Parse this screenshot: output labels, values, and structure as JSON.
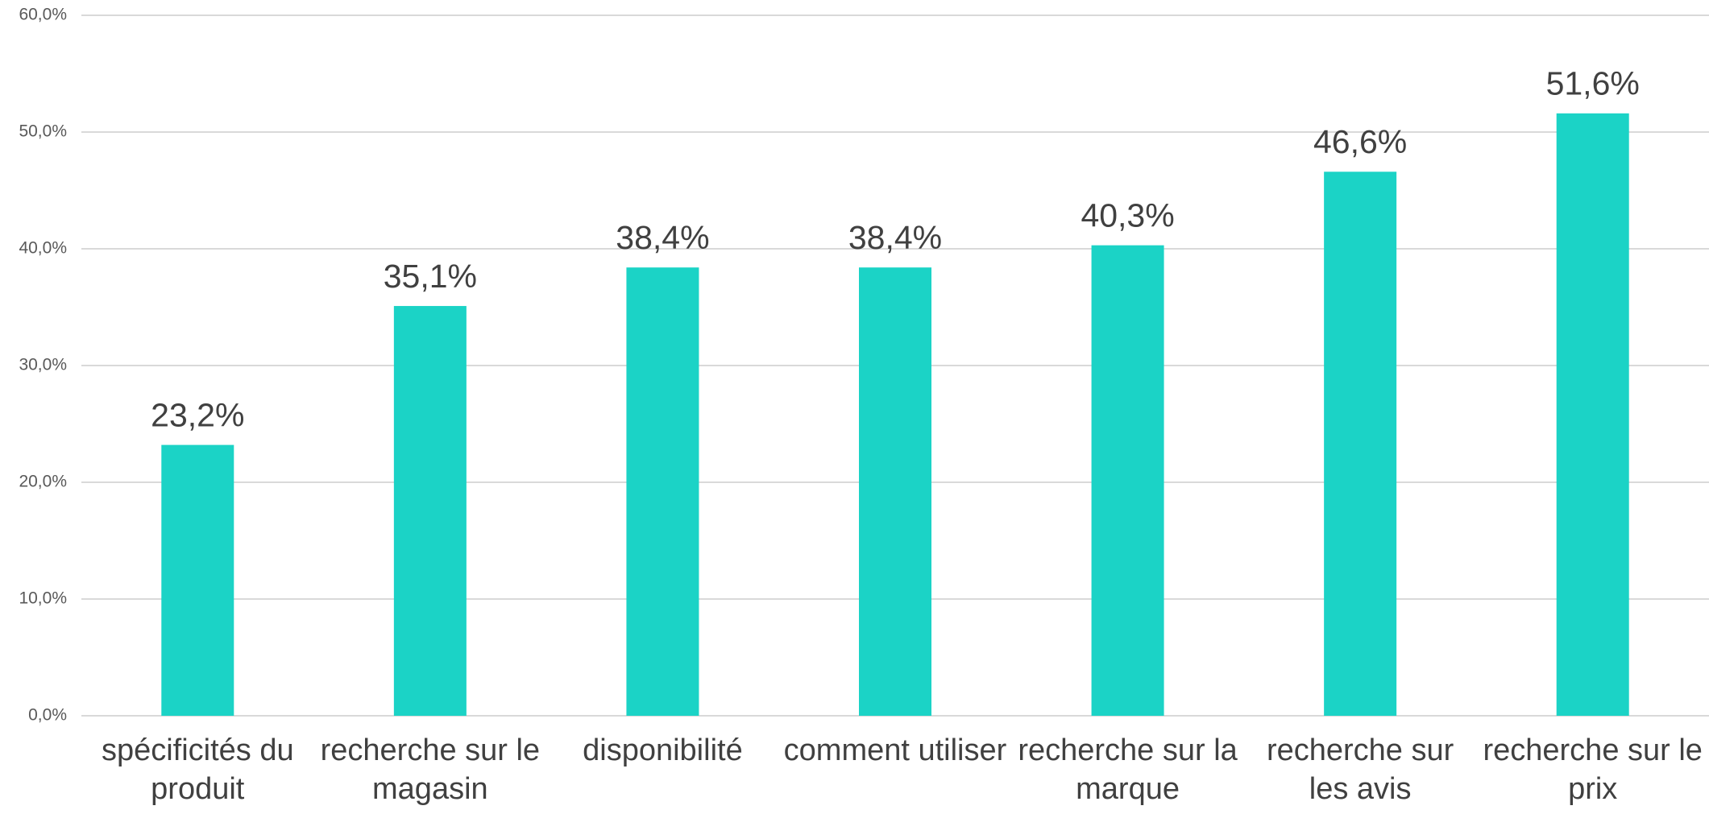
{
  "chart_data": {
    "type": "bar",
    "categories": [
      "spécificités du produit",
      "recherche sur le magasin",
      "disponibilité",
      "comment utiliser",
      "recherche sur la marque",
      "recherche sur les avis",
      "recherche sur le prix"
    ],
    "values": [
      23.2,
      35.1,
      38.4,
      38.4,
      40.3,
      46.6,
      51.6
    ],
    "value_labels": [
      "23,2%",
      "35,1%",
      "38,4%",
      "38,4%",
      "40,3%",
      "46,6%",
      "51,6%"
    ],
    "color": "#1bd3c6",
    "ylim": [
      0,
      60
    ],
    "yticks": [
      {
        "value": 0,
        "label": "0,0%"
      },
      {
        "value": 10,
        "label": "10,0%"
      },
      {
        "value": 20,
        "label": "20,0%"
      },
      {
        "value": 30,
        "label": "30,0%"
      },
      {
        "value": 40,
        "label": "40,0%"
      },
      {
        "value": 50,
        "label": "50,0%"
      },
      {
        "value": 60,
        "label": "60,0%"
      }
    ],
    "grid": true
  }
}
